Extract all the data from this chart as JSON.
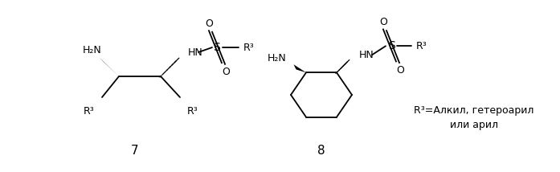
{
  "bg_color": "#ffffff",
  "label7": "7",
  "label8": "8",
  "legend_text1": "R³=Алкил, гетероарил",
  "legend_text2": "или арил",
  "figsize": [
    6.97,
    2.14
  ],
  "dpi": 100
}
